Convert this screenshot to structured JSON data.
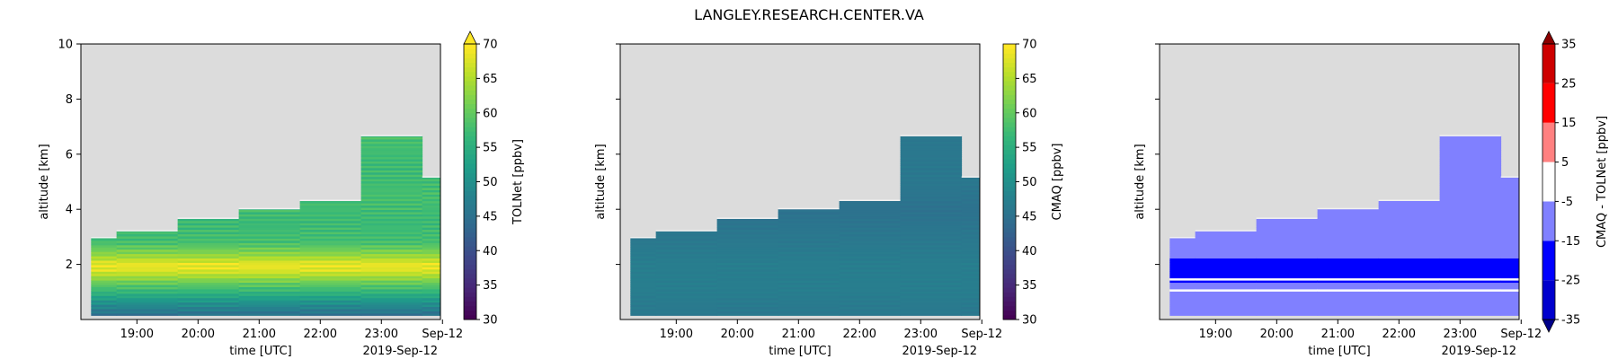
{
  "suptitle": "LANGLEY.RESEARCH.CENTER.VA",
  "time_ticks": [
    "19:00",
    "20:00",
    "21:00",
    "22:00",
    "23:00",
    "Sep-12"
  ],
  "time_offset_label": "2019-Sep-12",
  "colors": {
    "background_missing": "#dcdcdc",
    "viridis": [
      "#440154",
      "#482878",
      "#3e4989",
      "#31688e",
      "#26828e",
      "#1f9e89",
      "#35b779",
      "#6ece58",
      "#b5de2b",
      "#fde725"
    ],
    "diff_levels": [
      "#00008b",
      "#0000cd",
      "#0000ff",
      "#8080ff",
      "#ffffff",
      "#ff8080",
      "#ff0000",
      "#cd0000",
      "#8b0000"
    ]
  },
  "chart_data": [
    {
      "type": "heatmap",
      "title": "",
      "xlabel": "time [UTC]",
      "ylabel": "altitude [km]",
      "ylim": [
        0,
        10
      ],
      "yticks": [
        "2",
        "4",
        "6",
        "8",
        "10"
      ],
      "colorbar": {
        "label": "TOLNet [ppbv]",
        "range": [
          30,
          70
        ],
        "ticks": [
          "30",
          "35",
          "40",
          "45",
          "50",
          "55",
          "60",
          "65",
          "70"
        ],
        "extend": "max",
        "colormap": "viridis"
      },
      "columns": [
        {
          "time": "18:15",
          "top_km": 2.95
        },
        {
          "time": "18:40",
          "top_km": 3.2
        },
        {
          "time": "19:40",
          "top_km": 3.65
        },
        {
          "time": "20:40",
          "top_km": 4.0
        },
        {
          "time": "21:40",
          "top_km": 4.3
        },
        {
          "time": "22:40",
          "top_km": 6.65
        },
        {
          "time": "23:40",
          "top_km": 5.15
        }
      ],
      "profile": [
        {
          "alt_km": 0.2,
          "ppbv": 45
        },
        {
          "alt_km": 0.6,
          "ppbv": 50
        },
        {
          "alt_km": 1.0,
          "ppbv": 56
        },
        {
          "alt_km": 1.3,
          "ppbv": 60
        },
        {
          "alt_km": 1.6,
          "ppbv": 65
        },
        {
          "alt_km": 1.8,
          "ppbv": 68
        },
        {
          "alt_km": 2.0,
          "ppbv": 69
        },
        {
          "alt_km": 2.3,
          "ppbv": 64
        },
        {
          "alt_km": 2.8,
          "ppbv": 58
        },
        {
          "alt_km": 3.5,
          "ppbv": 57
        },
        {
          "alt_km": 4.5,
          "ppbv": 58
        },
        {
          "alt_km": 5.5,
          "ppbv": 57
        },
        {
          "alt_km": 6.5,
          "ppbv": 58
        }
      ]
    },
    {
      "type": "heatmap",
      "title": "",
      "xlabel": "time [UTC]",
      "ylabel": "altitude [km]",
      "ylim": [
        0,
        10
      ],
      "colorbar": {
        "label": "CMAQ [ppbv]",
        "range": [
          30,
          70
        ],
        "ticks": [
          "30",
          "35",
          "40",
          "45",
          "50",
          "55",
          "60",
          "65",
          "70"
        ],
        "extend": "neither",
        "colormap": "viridis"
      },
      "columns": [
        {
          "time": "18:15",
          "top_km": 2.95
        },
        {
          "time": "18:40",
          "top_km": 3.2
        },
        {
          "time": "19:40",
          "top_km": 3.65
        },
        {
          "time": "20:40",
          "top_km": 4.0
        },
        {
          "time": "21:40",
          "top_km": 4.3
        },
        {
          "time": "22:40",
          "top_km": 6.65
        },
        {
          "time": "23:40",
          "top_km": 5.15
        }
      ],
      "profile": [
        {
          "alt_km": 0.2,
          "ppbv": 46
        },
        {
          "alt_km": 1.0,
          "ppbv": 47
        },
        {
          "alt_km": 2.0,
          "ppbv": 47
        },
        {
          "alt_km": 3.0,
          "ppbv": 46
        },
        {
          "alt_km": 4.0,
          "ppbv": 45
        },
        {
          "alt_km": 5.0,
          "ppbv": 46
        },
        {
          "alt_km": 6.5,
          "ppbv": 46
        }
      ]
    },
    {
      "type": "heatmap",
      "title": "",
      "xlabel": "time [UTC]",
      "ylabel": "altitude [km]",
      "ylim": [
        0,
        10
      ],
      "colorbar": {
        "label": "CMAQ - TOLNet [ppbv]",
        "range": [
          -35,
          35
        ],
        "ticks": [
          "-35",
          "-25",
          "-15",
          "-5",
          "5",
          "15",
          "25",
          "35"
        ],
        "extend": "both",
        "colormap": "diff_levels"
      },
      "columns": [
        {
          "time": "18:15",
          "top_km": 2.95
        },
        {
          "time": "18:40",
          "top_km": 3.2
        },
        {
          "time": "19:40",
          "top_km": 3.65
        },
        {
          "time": "20:40",
          "top_km": 4.0
        },
        {
          "time": "21:40",
          "top_km": 4.3
        },
        {
          "time": "22:40",
          "top_km": 6.65
        },
        {
          "time": "23:40",
          "top_km": 5.15
        }
      ],
      "bands": [
        {
          "from_km": 0.0,
          "to_km": 0.3,
          "level": 3
        },
        {
          "from_km": 0.3,
          "to_km": 0.8,
          "level": 3
        },
        {
          "from_km": 0.8,
          "to_km": 1.3,
          "level": 3
        },
        {
          "from_km": 1.3,
          "to_km": 2.2,
          "level": 2
        },
        {
          "from_km": 2.2,
          "to_km": 3.0,
          "level": 3
        },
        {
          "from_km": 3.0,
          "to_km": 7.0,
          "level": 3
        }
      ]
    }
  ]
}
